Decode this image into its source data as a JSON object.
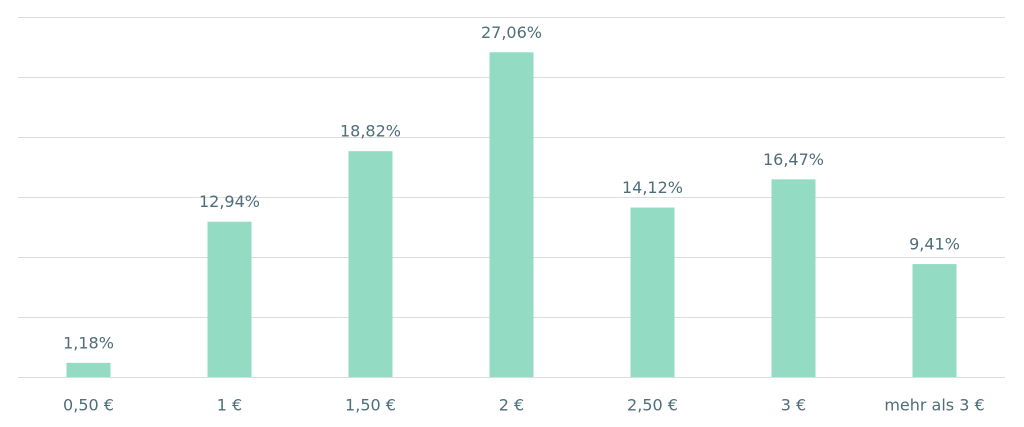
{
  "chart_data": {
    "type": "bar",
    "categories": [
      "0,50 €",
      "1 €",
      "1,50 €",
      "2 €",
      "2,50 €",
      "3 €",
      "mehr als 3 €"
    ],
    "values": [
      1.18,
      12.94,
      18.82,
      27.06,
      14.12,
      16.47,
      9.41
    ],
    "value_labels": [
      "1,18%",
      "12,94%",
      "18,82%",
      "27,06%",
      "14,12%",
      "16,47%",
      "9,41%"
    ],
    "color": "#93dcc3",
    "ylim": [
      0,
      30
    ],
    "yticks": [
      0,
      5,
      10,
      15,
      20,
      25,
      30
    ],
    "grid": true
  }
}
